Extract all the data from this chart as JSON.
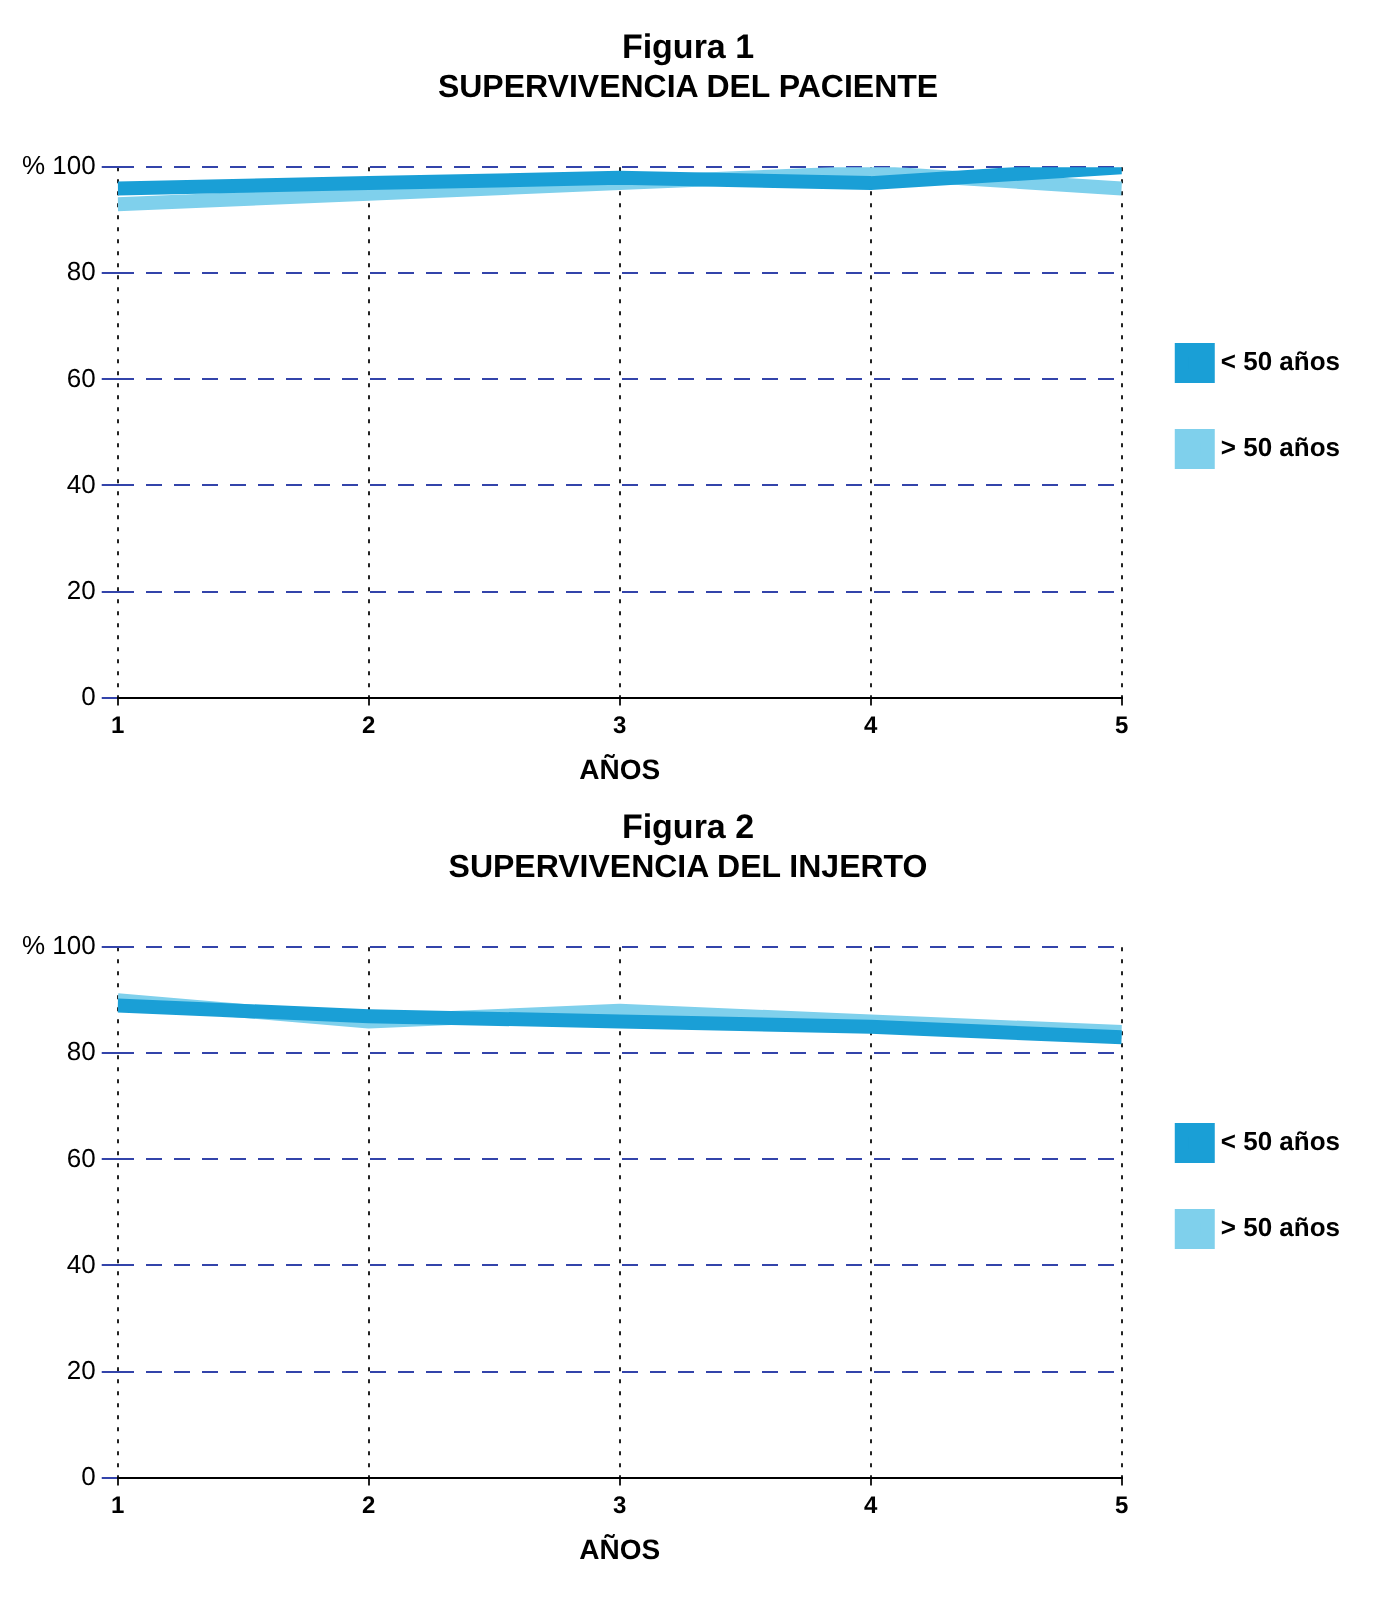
{
  "chart_data": [
    {
      "type": "line",
      "title": "Figura 1",
      "subtitle": "SUPERVIVENCIA DEL PACIENTE",
      "xlabel": "AÑOS",
      "x": [
        1,
        2,
        3,
        4,
        5
      ],
      "xlim": [
        1,
        5
      ],
      "xticks": [
        1,
        2,
        3,
        4,
        5
      ],
      "ylim": [
        0,
        100
      ],
      "yticks": [
        0,
        20,
        40,
        60,
        80,
        {
          "value": 100,
          "label": "% 100"
        }
      ],
      "grid": true,
      "legend": "right",
      "marker": "none",
      "line_style": "solid",
      "series": [
        {
          "name": "< 50 años",
          "color": "#1a9fd6",
          "values": [
            96,
            97,
            98,
            97,
            100
          ]
        },
        {
          "name": "> 50 años",
          "color": "#7fd0ec",
          "values": [
            93,
            95,
            97,
            99,
            96
          ]
        }
      ]
    },
    {
      "type": "line",
      "title": "Figura 2",
      "subtitle": "SUPERVIVENCIA DEL INJERTO",
      "xlabel": "AÑOS",
      "x": [
        1,
        2,
        3,
        4,
        5
      ],
      "xlim": [
        1,
        5
      ],
      "xticks": [
        1,
        2,
        3,
        4,
        5
      ],
      "ylim": [
        0,
        100
      ],
      "yticks": [
        0,
        20,
        40,
        60,
        80,
        {
          "value": 100,
          "label": "% 100"
        }
      ],
      "grid": true,
      "legend": "right",
      "marker": "none",
      "line_style": "solid",
      "series": [
        {
          "name": "< 50 años",
          "color": "#1a9fd6",
          "values": [
            89,
            87,
            86,
            85,
            83
          ]
        },
        {
          "name": "> 50 años",
          "color": "#7fd0ec",
          "values": [
            90,
            86,
            88,
            86,
            84
          ]
        }
      ]
    }
  ]
}
